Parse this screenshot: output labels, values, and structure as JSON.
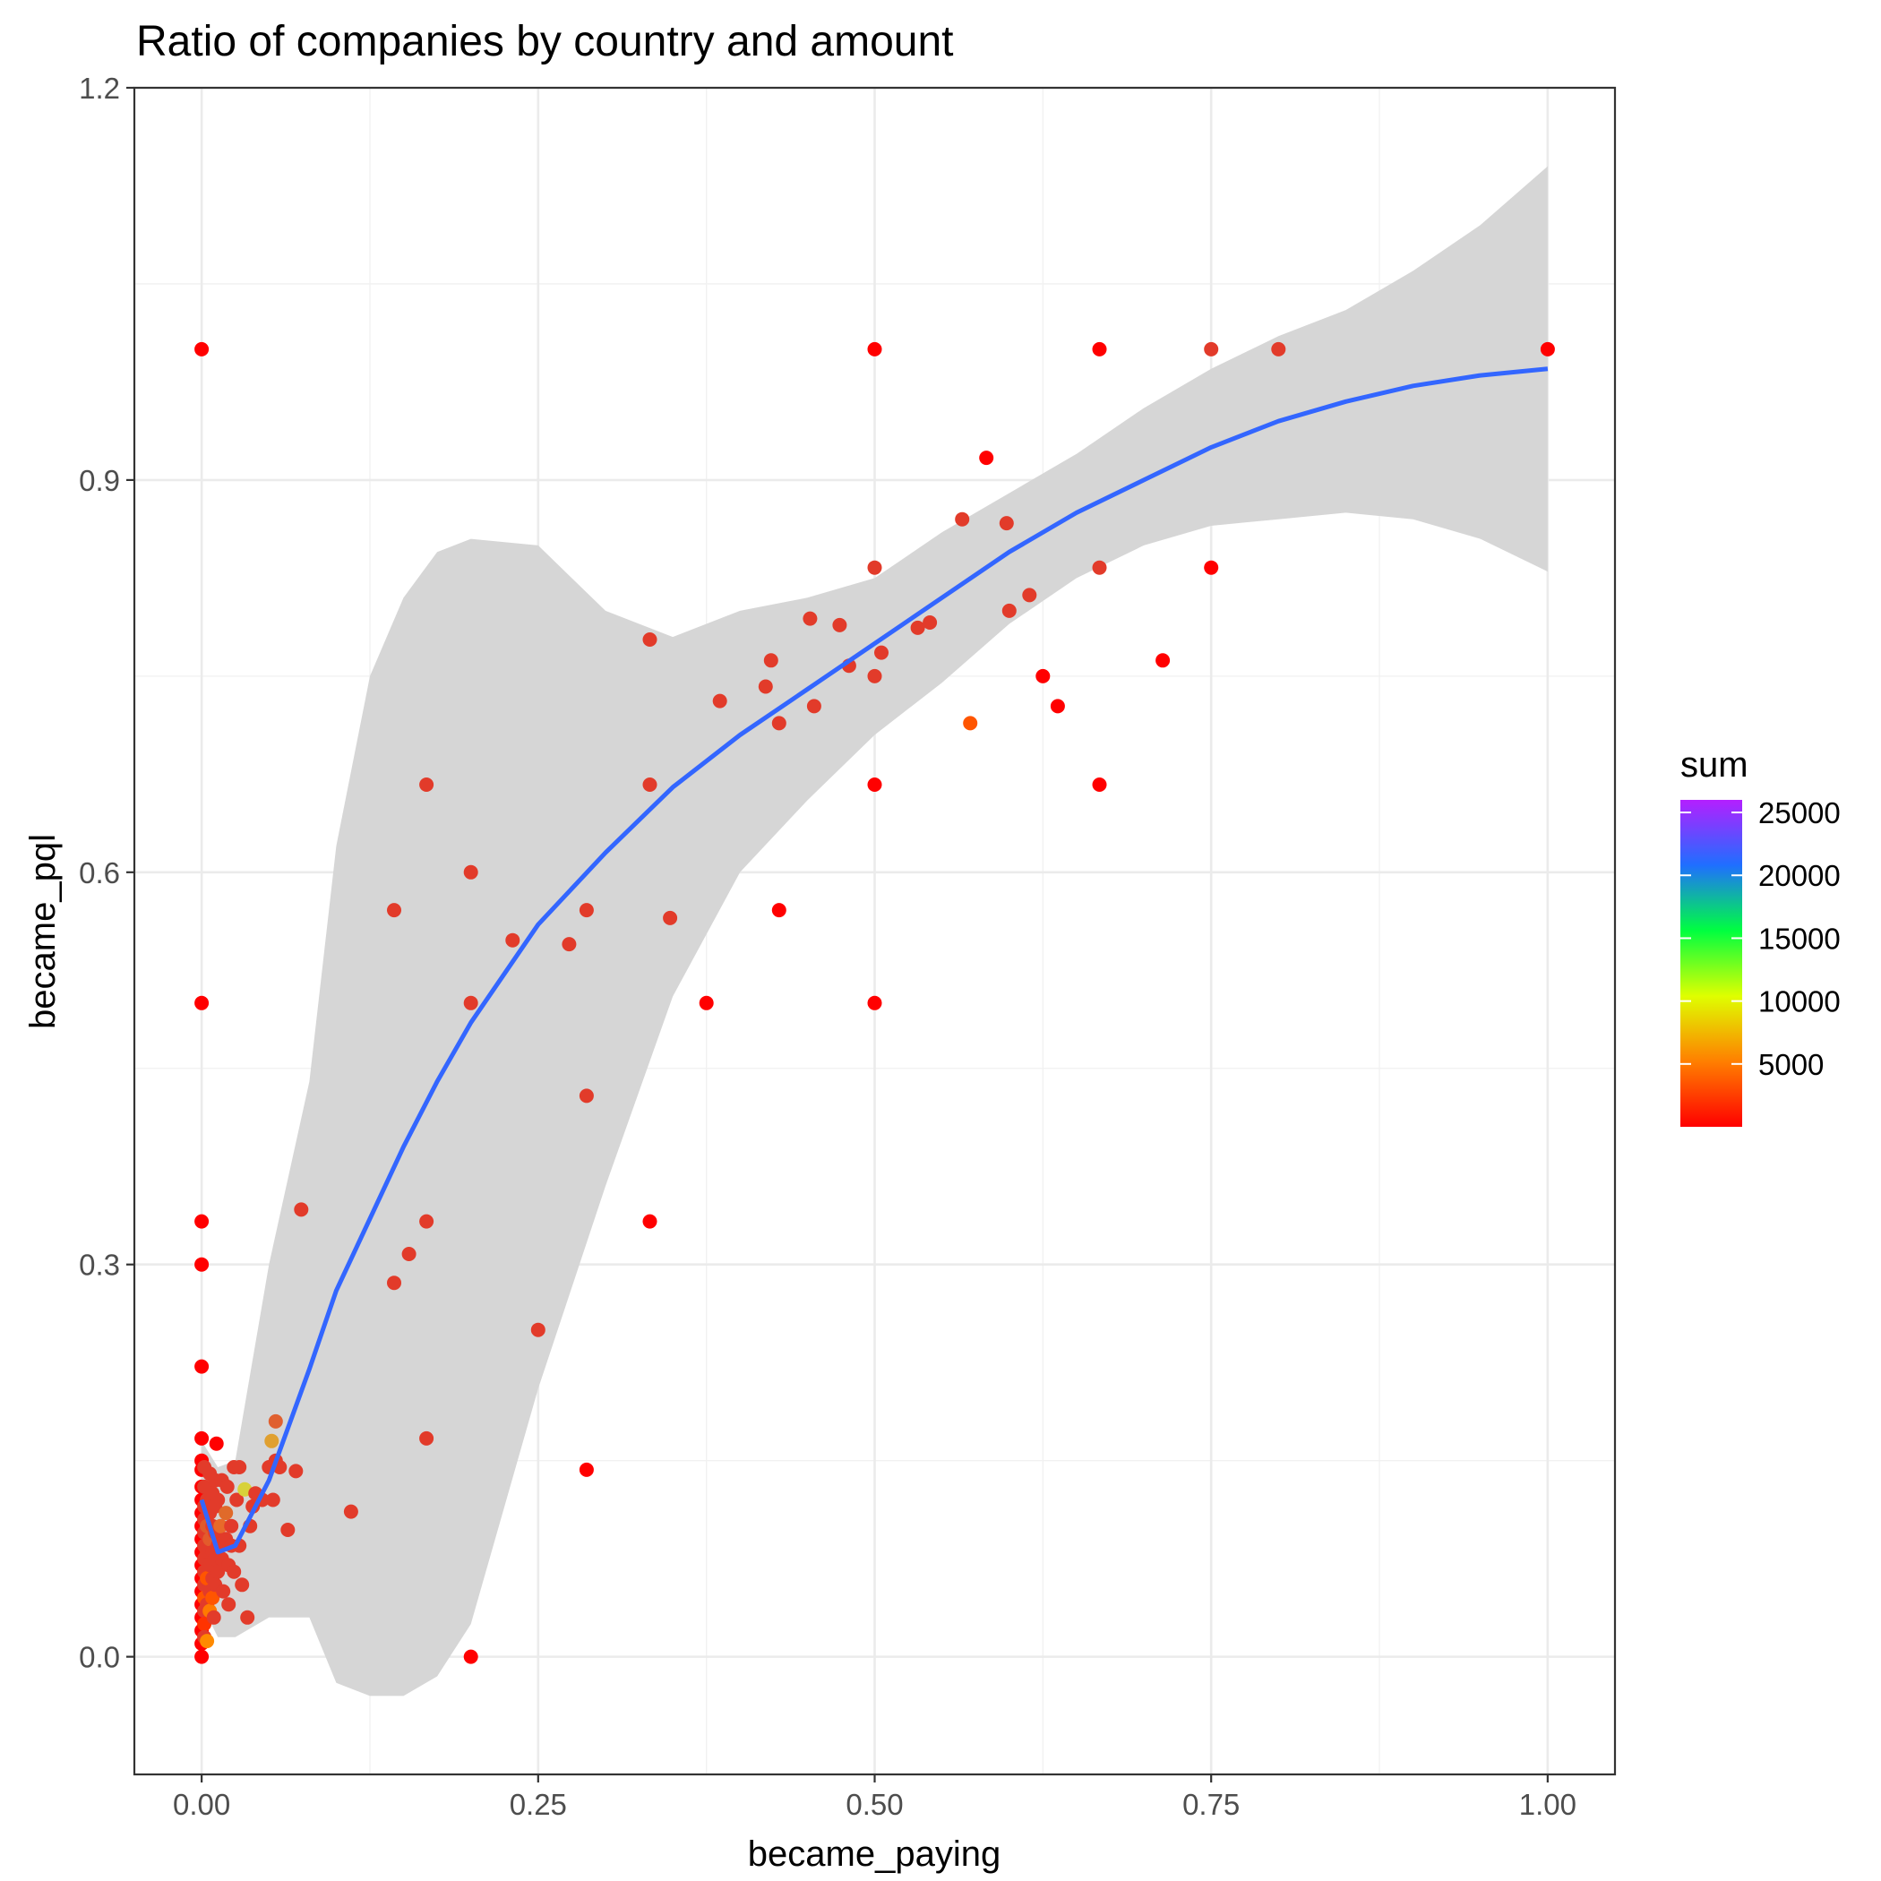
{
  "chart_data": {
    "type": "scatter",
    "title": "Ratio of companies by country and amount",
    "xlabel": "became_paying",
    "ylabel": "became_pql",
    "xlim": [
      -0.05,
      1.05
    ],
    "ylim": [
      -0.09,
      1.2
    ],
    "x_ticks": [
      "0.00",
      "0.25",
      "0.50",
      "0.75",
      "1.00"
    ],
    "y_ticks": [
      "0.0",
      "0.3",
      "0.6",
      "0.9",
      "1.2"
    ],
    "grid": true,
    "legend": {
      "title": "sum",
      "position": "right",
      "type": "colorbar",
      "range": [
        1,
        26000
      ],
      "labels": [
        "5000",
        "10000",
        "15000",
        "20000",
        "25000"
      ],
      "colors": [
        "#ff0000",
        "#ff7f00",
        "#dfff00",
        "#00ff40",
        "#1f6fff",
        "#b41fff"
      ]
    },
    "smooth": {
      "color": "#3366ff",
      "ribbon_color": "#d6d6d6",
      "x": [
        0,
        0.012,
        0.025,
        0.05,
        0.08,
        0.1,
        0.125,
        0.15,
        0.175,
        0.2,
        0.25,
        0.3,
        0.35,
        0.4,
        0.45,
        0.5,
        0.55,
        0.6,
        0.65,
        0.7,
        0.75,
        0.8,
        0.85,
        0.9,
        0.95,
        1.0
      ],
      "y": [
        0.12,
        0.08,
        0.085,
        0.135,
        0.22,
        0.28,
        0.335,
        0.39,
        0.44,
        0.485,
        0.56,
        0.615,
        0.665,
        0.705,
        0.74,
        0.775,
        0.81,
        0.845,
        0.875,
        0.9,
        0.925,
        0.945,
        0.96,
        0.972,
        0.98,
        0.985
      ],
      "ymin": [
        0.04,
        0.015,
        0.015,
        0.03,
        0.03,
        -0.02,
        -0.03,
        -0.03,
        -0.015,
        0.025,
        0.205,
        0.36,
        0.505,
        0.6,
        0.655,
        0.705,
        0.745,
        0.79,
        0.825,
        0.85,
        0.865,
        0.87,
        0.875,
        0.87,
        0.855,
        0.83
      ],
      "ymax": [
        0.165,
        0.145,
        0.15,
        0.3,
        0.44,
        0.62,
        0.75,
        0.81,
        0.845,
        0.855,
        0.85,
        0.8,
        0.78,
        0.8,
        0.81,
        0.825,
        0.86,
        0.89,
        0.92,
        0.955,
        0.985,
        1.01,
        1.03,
        1.06,
        1.095,
        1.14
      ]
    },
    "points": [
      {
        "x": 0,
        "y": 1.0,
        "color": "#ff0000"
      },
      {
        "x": 0,
        "y": 0.5,
        "color": "#ff0000"
      },
      {
        "x": 0,
        "y": 0.333,
        "color": "#ff0000"
      },
      {
        "x": 0,
        "y": 0.3,
        "color": "#ff0000"
      },
      {
        "x": 0,
        "y": 0.222,
        "color": "#ff0000"
      },
      {
        "x": 0,
        "y": 0.167,
        "color": "#ff0000"
      },
      {
        "x": 0,
        "y": 0.15,
        "color": "#ff0000"
      },
      {
        "x": 0,
        "y": 0.143,
        "color": "#ff0000"
      },
      {
        "x": 0,
        "y": 0.13,
        "color": "#ff0000"
      },
      {
        "x": 0,
        "y": 0.12,
        "color": "#ff0000"
      },
      {
        "x": 0,
        "y": 0.11,
        "color": "#ff0000"
      },
      {
        "x": 0,
        "y": 0.1,
        "color": "#ff0000"
      },
      {
        "x": 0,
        "y": 0.09,
        "color": "#ff0000"
      },
      {
        "x": 0,
        "y": 0.08,
        "color": "#ff0000"
      },
      {
        "x": 0,
        "y": 0.07,
        "color": "#ff0000"
      },
      {
        "x": 0,
        "y": 0.06,
        "color": "#ff0000"
      },
      {
        "x": 0,
        "y": 0.05,
        "color": "#ff0000"
      },
      {
        "x": 0,
        "y": 0.04,
        "color": "#ff0000"
      },
      {
        "x": 0,
        "y": 0.03,
        "color": "#ff0000"
      },
      {
        "x": 0,
        "y": 0.02,
        "color": "#ff0000"
      },
      {
        "x": 0,
        "y": 0.01,
        "color": "#ff0000"
      },
      {
        "x": 0,
        "y": 0.0,
        "color": "#ff0000"
      },
      {
        "x": 0.002,
        "y": 0.145,
        "color": "#e23b2a"
      },
      {
        "x": 0.002,
        "y": 0.13,
        "color": "#e23b2a"
      },
      {
        "x": 0.002,
        "y": 0.115,
        "color": "#e23b2a"
      },
      {
        "x": 0.002,
        "y": 0.105,
        "color": "#e23b2a"
      },
      {
        "x": 0.002,
        "y": 0.095,
        "color": "#e23b2a"
      },
      {
        "x": 0.002,
        "y": 0.085,
        "color": "#e23b2a"
      },
      {
        "x": 0.002,
        "y": 0.075,
        "color": "#e23b2a"
      },
      {
        "x": 0.002,
        "y": 0.065,
        "color": "#e23b2a"
      },
      {
        "x": 0.002,
        "y": 0.055,
        "color": "#e23b2a"
      },
      {
        "x": 0.002,
        "y": 0.045,
        "color": "#ff5500"
      },
      {
        "x": 0.002,
        "y": 0.035,
        "color": "#e23b2a"
      },
      {
        "x": 0.002,
        "y": 0.025,
        "color": "#ff3300"
      },
      {
        "x": 0.002,
        "y": 0.015,
        "color": "#e23b2a"
      },
      {
        "x": 0.004,
        "y": 0.12,
        "color": "#e23b2a"
      },
      {
        "x": 0.004,
        "y": 0.1,
        "color": "#e05a2a"
      },
      {
        "x": 0.004,
        "y": 0.08,
        "color": "#e23b2a"
      },
      {
        "x": 0.004,
        "y": 0.06,
        "color": "#ff5500"
      },
      {
        "x": 0.004,
        "y": 0.04,
        "color": "#e23b2a"
      },
      {
        "x": 0.004,
        "y": 0.012,
        "color": "#ff8a00"
      },
      {
        "x": 0.006,
        "y": 0.14,
        "color": "#e23b2a"
      },
      {
        "x": 0.006,
        "y": 0.11,
        "color": "#e23b2a"
      },
      {
        "x": 0.006,
        "y": 0.09,
        "color": "#e35b2b"
      },
      {
        "x": 0.006,
        "y": 0.07,
        "color": "#e23b2a"
      },
      {
        "x": 0.006,
        "y": 0.05,
        "color": "#e23b2a"
      },
      {
        "x": 0.006,
        "y": 0.035,
        "color": "#ff7a00"
      },
      {
        "x": 0.008,
        "y": 0.125,
        "color": "#e23b2a"
      },
      {
        "x": 0.008,
        "y": 0.1,
        "color": "#e23b2a"
      },
      {
        "x": 0.008,
        "y": 0.08,
        "color": "#e23b2a"
      },
      {
        "x": 0.008,
        "y": 0.06,
        "color": "#e23b2a"
      },
      {
        "x": 0.008,
        "y": 0.045,
        "color": "#ff5500"
      },
      {
        "x": 0.009,
        "y": 0.03,
        "color": "#e23b2a"
      },
      {
        "x": 0.01,
        "y": 0.135,
        "color": "#e23b2a"
      },
      {
        "x": 0.01,
        "y": 0.115,
        "color": "#e23b2a"
      },
      {
        "x": 0.01,
        "y": 0.095,
        "color": "#e23b2a"
      },
      {
        "x": 0.01,
        "y": 0.075,
        "color": "#e23b2a"
      },
      {
        "x": 0.01,
        "y": 0.055,
        "color": "#e23b2a"
      },
      {
        "x": 0.011,
        "y": 0.163,
        "color": "#ff0000"
      },
      {
        "x": 0.012,
        "y": 0.12,
        "color": "#e23b2a"
      },
      {
        "x": 0.012,
        "y": 0.085,
        "color": "#e23b2a"
      },
      {
        "x": 0.012,
        "y": 0.065,
        "color": "#e23b2a"
      },
      {
        "x": 0.014,
        "y": 0.1,
        "color": "#e86a2a"
      },
      {
        "x": 0.015,
        "y": 0.135,
        "color": "#e23b2a"
      },
      {
        "x": 0.015,
        "y": 0.075,
        "color": "#e23b2a"
      },
      {
        "x": 0.016,
        "y": 0.05,
        "color": "#e23b2a"
      },
      {
        "x": 0.018,
        "y": 0.11,
        "color": "#e06a2a"
      },
      {
        "x": 0.018,
        "y": 0.09,
        "color": "#e23b2a"
      },
      {
        "x": 0.019,
        "y": 0.13,
        "color": "#e23b2a"
      },
      {
        "x": 0.02,
        "y": 0.07,
        "color": "#e23b2a"
      },
      {
        "x": 0.02,
        "y": 0.04,
        "color": "#e23b2a"
      },
      {
        "x": 0.022,
        "y": 0.1,
        "color": "#e23b2a"
      },
      {
        "x": 0.022,
        "y": 0.085,
        "color": "#e23b2a"
      },
      {
        "x": 0.024,
        "y": 0.145,
        "color": "#e23b2a"
      },
      {
        "x": 0.024,
        "y": 0.065,
        "color": "#e23b2a"
      },
      {
        "x": 0.026,
        "y": 0.12,
        "color": "#e23b2a"
      },
      {
        "x": 0.028,
        "y": 0.145,
        "color": "#e23b2a"
      },
      {
        "x": 0.028,
        "y": 0.085,
        "color": "#e23b2a"
      },
      {
        "x": 0.03,
        "y": 0.055,
        "color": "#e23b2a"
      },
      {
        "x": 0.032,
        "y": 0.128,
        "color": "#d8d23a"
      },
      {
        "x": 0.034,
        "y": 0.03,
        "color": "#e23b2a"
      },
      {
        "x": 0.036,
        "y": 0.1,
        "color": "#e23b2a"
      },
      {
        "x": 0.038,
        "y": 0.115,
        "color": "#e23b2a"
      },
      {
        "x": 0.04,
        "y": 0.125,
        "color": "#e23b2a"
      },
      {
        "x": 0.045,
        "y": 0.12,
        "color": "#e23b2a"
      },
      {
        "x": 0.05,
        "y": 0.145,
        "color": "#e23b2a"
      },
      {
        "x": 0.052,
        "y": 0.165,
        "color": "#e0a030"
      },
      {
        "x": 0.053,
        "y": 0.12,
        "color": "#e23b2a"
      },
      {
        "x": 0.055,
        "y": 0.18,
        "color": "#e06030"
      },
      {
        "x": 0.055,
        "y": 0.15,
        "color": "#e23b2a"
      },
      {
        "x": 0.058,
        "y": 0.145,
        "color": "#e23b2a"
      },
      {
        "x": 0.064,
        "y": 0.097,
        "color": "#e23b2a"
      },
      {
        "x": 0.07,
        "y": 0.142,
        "color": "#e23b2a"
      },
      {
        "x": 0.074,
        "y": 0.342,
        "color": "#e23b2a"
      },
      {
        "x": 0.111,
        "y": 0.111,
        "color": "#e23b2a"
      },
      {
        "x": 0.143,
        "y": 0.286,
        "color": "#e23b2a"
      },
      {
        "x": 0.143,
        "y": 0.571,
        "color": "#e23b2a"
      },
      {
        "x": 0.154,
        "y": 0.308,
        "color": "#e23b2a"
      },
      {
        "x": 0.167,
        "y": 0.667,
        "color": "#e23b2a"
      },
      {
        "x": 0.167,
        "y": 0.333,
        "color": "#e23b2a"
      },
      {
        "x": 0.167,
        "y": 0.167,
        "color": "#e23b2a"
      },
      {
        "x": 0.2,
        "y": 0.6,
        "color": "#e23b2a"
      },
      {
        "x": 0.2,
        "y": 0.5,
        "color": "#e23b2a"
      },
      {
        "x": 0.2,
        "y": 0.0,
        "color": "#ff0000"
      },
      {
        "x": 0.231,
        "y": 0.548,
        "color": "#e23b2a"
      },
      {
        "x": 0.25,
        "y": 0.25,
        "color": "#e23b2a"
      },
      {
        "x": 0.273,
        "y": 0.545,
        "color": "#e23b2a"
      },
      {
        "x": 0.286,
        "y": 0.571,
        "color": "#e23b2a"
      },
      {
        "x": 0.286,
        "y": 0.429,
        "color": "#e23b2a"
      },
      {
        "x": 0.286,
        "y": 0.143,
        "color": "#ff0000"
      },
      {
        "x": 0.333,
        "y": 0.778,
        "color": "#e23b2a"
      },
      {
        "x": 0.333,
        "y": 0.667,
        "color": "#e23b2a"
      },
      {
        "x": 0.333,
        "y": 0.333,
        "color": "#ff0000"
      },
      {
        "x": 0.348,
        "y": 0.565,
        "color": "#e23b2a"
      },
      {
        "x": 0.375,
        "y": 0.5,
        "color": "#ff0000"
      },
      {
        "x": 0.385,
        "y": 0.731,
        "color": "#e23b2a"
      },
      {
        "x": 0.419,
        "y": 0.742,
        "color": "#e23b2a"
      },
      {
        "x": 0.423,
        "y": 0.762,
        "color": "#e23b2a"
      },
      {
        "x": 0.429,
        "y": 0.714,
        "color": "#e23b2a"
      },
      {
        "x": 0.429,
        "y": 0.571,
        "color": "#ff0000"
      },
      {
        "x": 0.452,
        "y": 0.794,
        "color": "#e23b2a"
      },
      {
        "x": 0.455,
        "y": 0.727,
        "color": "#e23b2a"
      },
      {
        "x": 0.474,
        "y": 0.789,
        "color": "#e23b2a"
      },
      {
        "x": 0.481,
        "y": 0.758,
        "color": "#e23b2a"
      },
      {
        "x": 0.5,
        "y": 1.0,
        "color": "#ff0000"
      },
      {
        "x": 0.5,
        "y": 0.833,
        "color": "#e23b2a"
      },
      {
        "x": 0.5,
        "y": 0.75,
        "color": "#e23b2a"
      },
      {
        "x": 0.5,
        "y": 0.667,
        "color": "#ff0000"
      },
      {
        "x": 0.5,
        "y": 0.5,
        "color": "#ff0000"
      },
      {
        "x": 0.505,
        "y": 0.768,
        "color": "#e23b2a"
      },
      {
        "x": 0.532,
        "y": 0.787,
        "color": "#e23b2a"
      },
      {
        "x": 0.541,
        "y": 0.791,
        "color": "#e23b2a"
      },
      {
        "x": 0.565,
        "y": 0.87,
        "color": "#e23b2a"
      },
      {
        "x": 0.571,
        "y": 0.714,
        "color": "#ff5500"
      },
      {
        "x": 0.583,
        "y": 0.917,
        "color": "#ff0000"
      },
      {
        "x": 0.598,
        "y": 0.867,
        "color": "#e23b2a"
      },
      {
        "x": 0.6,
        "y": 0.8,
        "color": "#e23b2a"
      },
      {
        "x": 0.615,
        "y": 0.812,
        "color": "#e23b2a"
      },
      {
        "x": 0.625,
        "y": 0.75,
        "color": "#ff0000"
      },
      {
        "x": 0.636,
        "y": 0.727,
        "color": "#ff0000"
      },
      {
        "x": 0.667,
        "y": 1.0,
        "color": "#ff0000"
      },
      {
        "x": 0.667,
        "y": 0.833,
        "color": "#e23b2a"
      },
      {
        "x": 0.667,
        "y": 0.667,
        "color": "#ff0000"
      },
      {
        "x": 0.714,
        "y": 0.762,
        "color": "#ff0000"
      },
      {
        "x": 0.75,
        "y": 1.0,
        "color": "#e23b2a"
      },
      {
        "x": 0.75,
        "y": 0.833,
        "color": "#ff0000"
      },
      {
        "x": 0.8,
        "y": 1.0,
        "color": "#e23b2a"
      },
      {
        "x": 1.0,
        "y": 1.0,
        "color": "#ff0000"
      }
    ]
  }
}
